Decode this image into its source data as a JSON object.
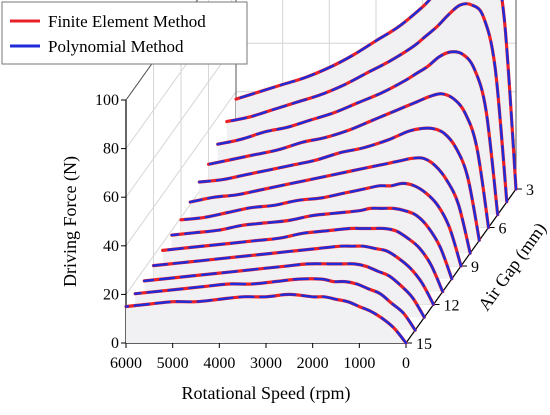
{
  "chart_data": {
    "type": "line",
    "view": "3d-waterfall",
    "title": "",
    "legend": {
      "placement": "top-left",
      "entries": [
        {
          "name": "Finite Element Method",
          "color": "#e8202a"
        },
        {
          "name": "Polynomial Method",
          "color": "#1f2bd8"
        }
      ]
    },
    "x_axis": {
      "label": "Rotational Speed (rpm)",
      "ticks": [
        "6000",
        "5000",
        "4000",
        "3000",
        "2000",
        "1000",
        "0"
      ],
      "range": [
        0,
        6000
      ],
      "reversed": true
    },
    "y_axis": {
      "label": "Air Gap (mm)",
      "ticks": [
        "3",
        "6",
        "9",
        "12",
        "15"
      ],
      "range": [
        3,
        15
      ]
    },
    "z_axis": {
      "label": "Driving Force (N)",
      "ticks": [
        "0",
        "20",
        "40",
        "60",
        "80",
        "100"
      ],
      "range": [
        0,
        100
      ]
    },
    "grid": true,
    "x": [
      0,
      250,
      500,
      750,
      1000,
      1250,
      1500,
      1750,
      2000,
      2500,
      3000,
      3500,
      4000,
      4500,
      5000,
      5500,
      6000
    ],
    "series_by_air_gap": [
      {
        "air_gap": 3.0,
        "force": [
          0,
          70,
          95,
          99,
          97,
          92,
          85,
          80,
          75,
          67,
          61,
          55,
          50,
          46,
          43,
          40,
          37
        ]
      },
      {
        "air_gap": 4.0,
        "force": [
          0,
          55,
          76,
          81,
          81,
          77,
          72,
          68,
          64,
          58,
          53,
          48,
          44,
          41,
          38,
          35,
          33
        ]
      },
      {
        "air_gap": 5.0,
        "force": [
          0,
          43,
          60,
          66,
          67,
          65,
          61,
          58,
          55,
          50,
          46,
          42,
          39,
          36,
          34,
          31,
          29
        ]
      },
      {
        "air_gap": 6.0,
        "force": [
          0,
          33,
          47,
          53,
          55,
          54,
          52,
          50,
          48,
          44,
          40,
          37,
          35,
          32,
          30,
          28,
          26
        ]
      },
      {
        "air_gap": 7.0,
        "force": [
          0,
          26,
          38,
          44,
          46,
          46,
          45,
          43,
          41,
          38,
          36,
          33,
          31,
          29,
          27,
          25,
          24
        ]
      },
      {
        "air_gap": 8.0,
        "force": [
          0,
          20,
          30,
          36,
          39,
          39,
          38,
          37,
          36,
          34,
          32,
          30,
          28,
          26,
          24,
          23,
          21
        ]
      },
      {
        "air_gap": 9.0,
        "force": [
          0,
          16,
          25,
          30,
          33,
          34,
          33,
          33,
          32,
          30,
          28,
          27,
          25,
          24,
          22,
          20,
          19
        ]
      },
      {
        "air_gap": 10.0,
        "force": [
          0,
          13,
          21,
          26,
          28,
          29,
          29,
          29,
          28,
          27,
          26,
          24,
          23,
          22,
          20,
          19,
          18
        ]
      },
      {
        "air_gap": 11.0,
        "force": [
          0,
          11,
          18,
          22,
          25,
          26,
          26,
          26,
          26,
          25,
          24,
          22,
          21,
          20,
          19,
          18,
          17
        ]
      },
      {
        "air_gap": 12.0,
        "force": [
          0,
          9,
          15,
          19,
          22,
          23,
          24,
          24,
          24,
          23,
          22,
          21,
          20,
          19,
          18,
          17,
          16
        ]
      },
      {
        "air_gap": 13.0,
        "force": [
          0,
          8,
          13,
          17,
          19,
          21,
          22,
          22,
          22,
          22,
          21,
          20,
          19,
          18,
          17,
          16,
          15
        ]
      },
      {
        "air_gap": 14.0,
        "force": [
          0,
          7,
          11,
          15,
          17,
          19,
          20,
          20,
          21,
          21,
          20,
          19,
          19,
          18,
          17,
          16,
          15
        ]
      },
      {
        "air_gap": 15.0,
        "force": [
          0,
          6,
          10,
          13,
          15,
          17,
          18,
          19,
          19,
          20,
          19,
          19,
          18,
          17,
          17,
          16,
          15
        ]
      }
    ]
  }
}
